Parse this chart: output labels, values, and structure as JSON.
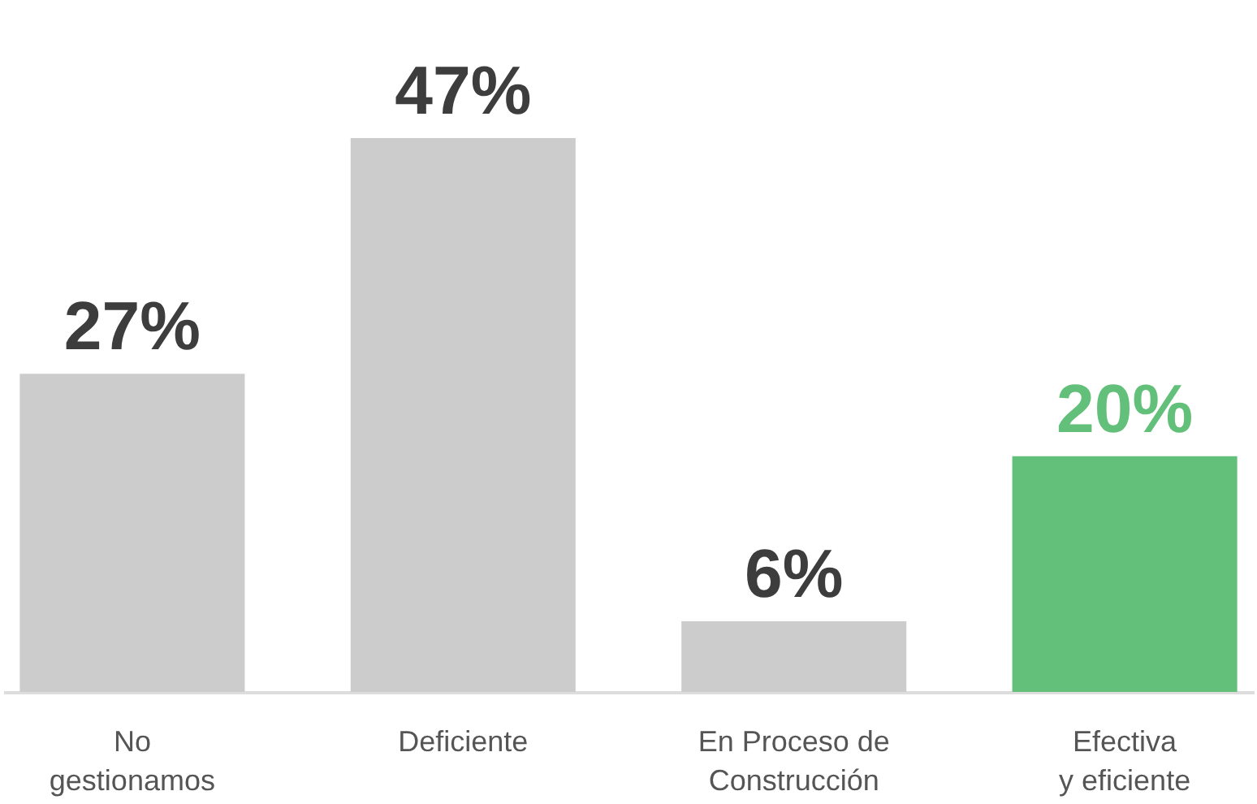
{
  "chart_data": {
    "type": "bar",
    "categories": [
      "No\ngestionamos",
      "Deficiente",
      "En Proceso de\nConstrucción",
      "Efectiva\ny eficiente"
    ],
    "values": [
      27,
      47,
      6,
      20
    ],
    "colors": [
      "#cccccc",
      "#cccccc",
      "#cccccc",
      "#63c07a"
    ],
    "value_labels": [
      "27%",
      "47%",
      "6%",
      "20%"
    ],
    "grid": false
  }
}
